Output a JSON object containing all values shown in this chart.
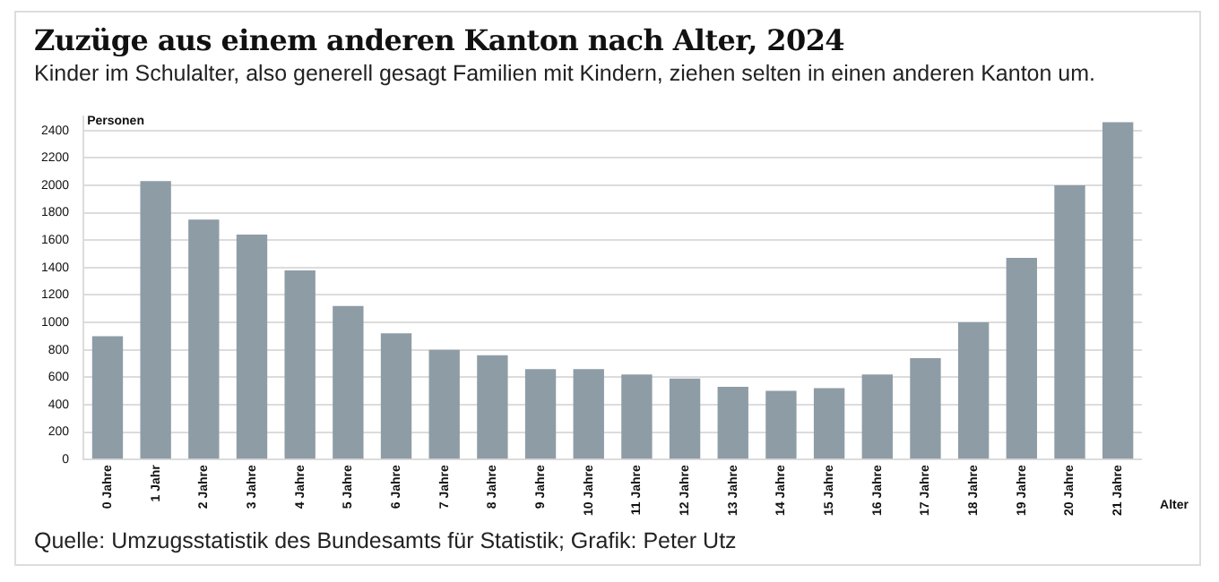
{
  "chart_data": {
    "type": "bar",
    "title": "Zuzüge aus einem anderen Kanton nach Alter, 2024",
    "subtitle": "Kinder im Schulalter, also generell gesagt Familien mit Kindern, ziehen selten in einen anderen Kanton um.",
    "ylabel": "Personen",
    "xlabel": "Alter",
    "categories": [
      "0 Jahre",
      "1 Jahr",
      "2 Jahre",
      "3 Jahre",
      "4 Jahre",
      "5 Jahre",
      "6 Jahre",
      "7 Jahre",
      "8 Jahre",
      "9 Jahre",
      "10 Jahre",
      "11 Jahre",
      "12 Jahre",
      "13 Jahre",
      "14 Jahre",
      "15 Jahre",
      "16 Jahre",
      "17 Jahre",
      "18 Jahre",
      "19 Jahre",
      "20 Jahre",
      "21 Jahre"
    ],
    "values": [
      900,
      2030,
      1750,
      1640,
      1380,
      1120,
      920,
      800,
      760,
      660,
      660,
      620,
      590,
      530,
      500,
      520,
      620,
      740,
      1000,
      1470,
      2000,
      2460
    ],
    "color": "#8e9ca6",
    "ylim": [
      0,
      2500
    ],
    "yticks": [
      0,
      200,
      400,
      600,
      800,
      1000,
      1200,
      1400,
      1600,
      1800,
      2000,
      2200,
      2400
    ],
    "grid": "y",
    "annotations": [
      "Quelle: Umzugsstatistik des Bundesamts für Statistik; Grafik: Peter Utz"
    ]
  }
}
